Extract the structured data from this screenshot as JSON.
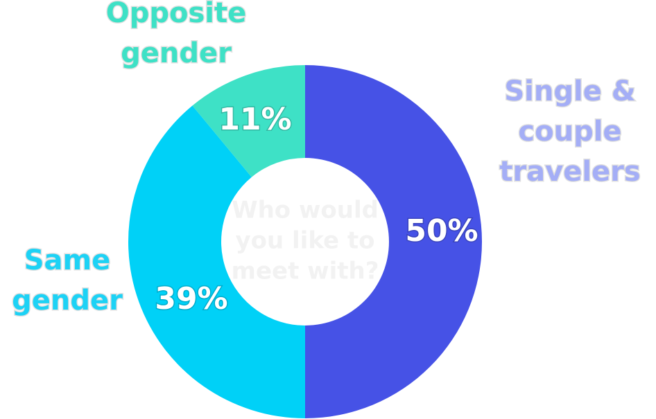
{
  "chart_data": {
    "type": "pie",
    "style": "donut",
    "title": "",
    "center_text": [
      "Who would",
      "you like to",
      "meet with?"
    ],
    "slices": [
      {
        "label": "Single & couple travelers",
        "label_lines": [
          "Single &",
          "couple",
          "travelers"
        ],
        "value": 50,
        "display": "50%",
        "color": "#4652e6",
        "label_color": "#a4aef6"
      },
      {
        "label": "Same gender",
        "label_lines": [
          "Same",
          "gender"
        ],
        "value": 39,
        "display": "39%",
        "color": "#00d1f7",
        "label_color": "#1dd2f5"
      },
      {
        "label": "Opposite gender",
        "label_lines": [
          "Opposite",
          "gender"
        ],
        "value": 11,
        "display": "11%",
        "color": "#3ee1c6",
        "label_color": "#3ee1c6"
      }
    ]
  }
}
